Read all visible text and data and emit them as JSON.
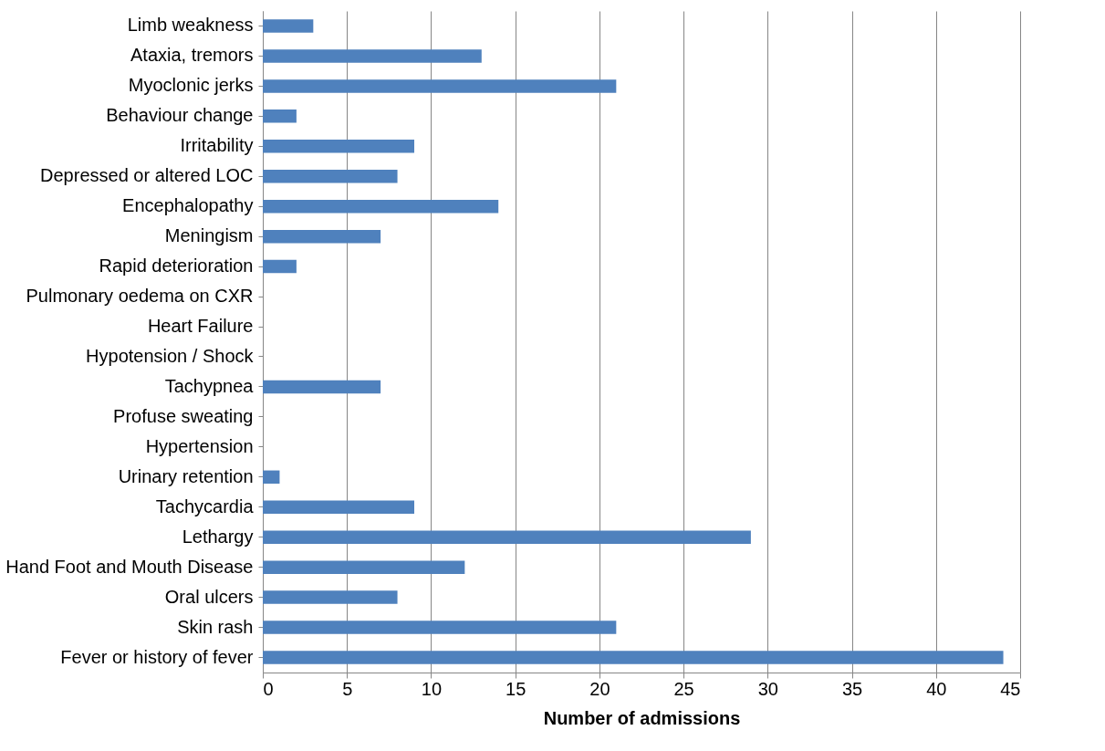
{
  "chart_data": {
    "type": "bar",
    "orientation": "horizontal",
    "xlabel": "Number of admissions",
    "categories": [
      "Limb weakness",
      "Ataxia, tremors",
      "Myoclonic jerks",
      "Behaviour change",
      "Irritability",
      "Depressed or altered LOC",
      "Encephalopathy",
      "Meningism",
      "Rapid deterioration",
      "Pulmonary oedema on CXR",
      "Heart Failure",
      "Hypotension / Shock",
      "Tachypnea",
      "Profuse sweating",
      "Hypertension",
      "Urinary retention",
      "Tachycardia",
      "Lethargy",
      "Hand Foot and Mouth Disease",
      "Oral ulcers",
      "Skin rash",
      "Fever or history of fever"
    ],
    "values": [
      3,
      13,
      21,
      2,
      9,
      8,
      14,
      7,
      2,
      0,
      0,
      0,
      7,
      0,
      0,
      1,
      9,
      29,
      12,
      8,
      21,
      44
    ],
    "color": "#4f81bd",
    "xlim": [
      0,
      45
    ],
    "xticks": [
      0,
      5,
      10,
      15,
      20,
      25,
      30,
      35,
      40,
      45
    ],
    "grid": "x"
  }
}
